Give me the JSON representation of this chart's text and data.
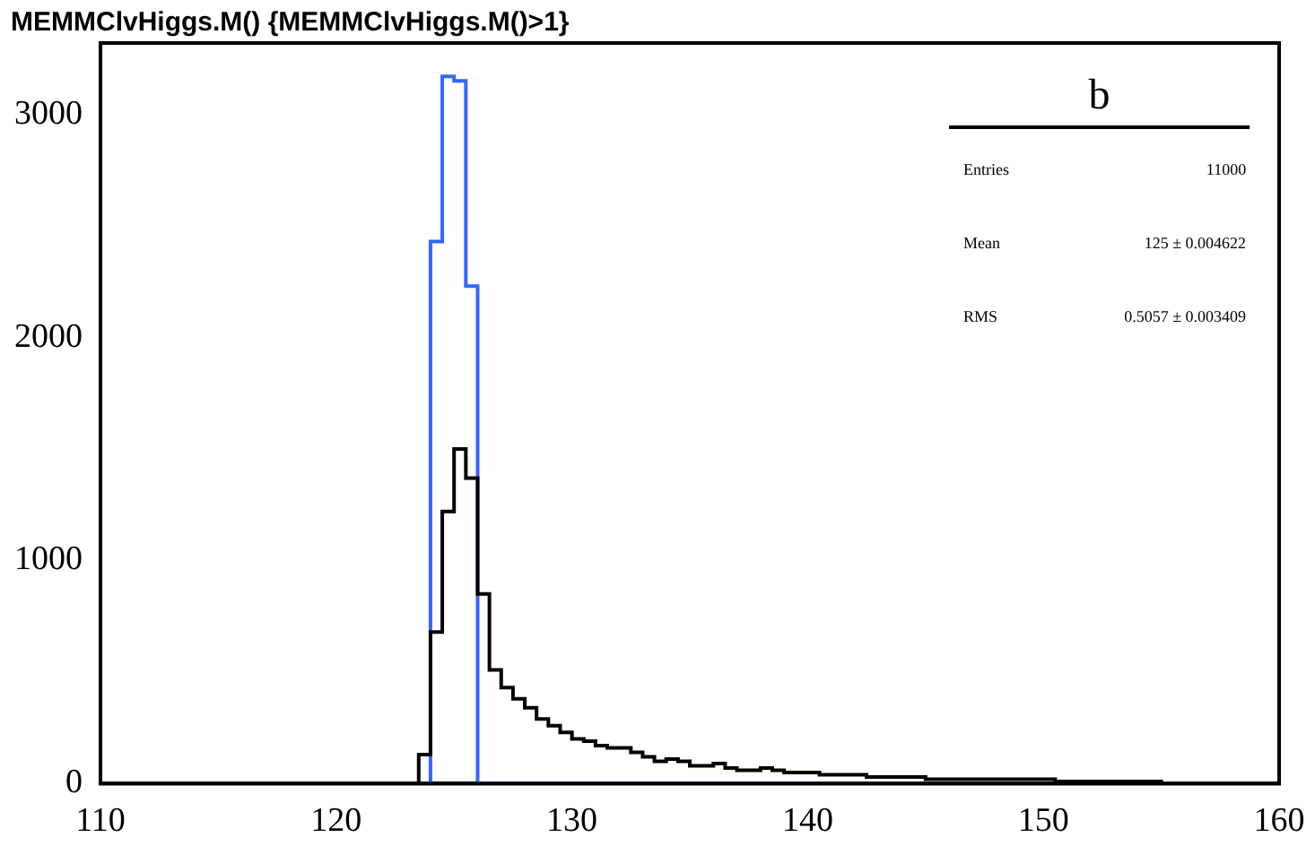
{
  "chart_data": {
    "type": "histogram",
    "title": "MEMMClvHiggs.M() {MEMMClvHiggs.M()>1}",
    "bins": [
      110,
      110.5,
      111,
      111.5,
      112,
      112.5,
      113,
      113.5,
      114,
      114.5,
      115,
      115.5,
      116,
      116.5,
      117,
      117.5,
      118,
      118.5,
      119,
      119.5,
      120,
      120.5,
      121,
      121.5,
      122,
      122.5,
      123,
      123.5,
      124,
      124.5,
      125,
      125.5,
      126,
      126.5,
      127,
      127.5,
      128,
      128.5,
      129,
      129.5,
      130,
      130.5,
      131,
      131.5,
      132,
      132.5,
      133,
      133.5,
      134,
      134.5,
      135,
      135.5,
      136,
      136.5,
      137,
      137.5,
      138,
      138.5,
      139,
      139.5,
      140,
      140.5,
      141,
      141.5,
      142,
      142.5,
      143,
      143.5,
      144,
      144.5,
      145,
      145.5,
      146,
      146.5,
      147,
      147.5,
      148,
      148.5,
      149,
      149.5,
      150,
      150.5,
      151,
      151.5,
      152,
      152.5,
      153,
      153.5,
      154,
      154.5,
      155,
      155.5,
      156,
      156.5,
      157,
      157.5,
      158,
      158.5,
      159,
      159.5,
      160
    ],
    "series": [
      {
        "color": "#000000",
        "values": [
          0,
          0,
          0,
          0,
          0,
          0,
          0,
          0,
          0,
          0,
          0,
          0,
          0,
          0,
          0,
          0,
          0,
          0,
          0,
          0,
          0,
          0,
          0,
          0,
          0,
          0,
          0,
          130,
          680,
          1220,
          1500,
          1370,
          850,
          510,
          430,
          380,
          340,
          290,
          260,
          230,
          200,
          190,
          170,
          160,
          160,
          140,
          120,
          100,
          110,
          100,
          80,
          80,
          90,
          70,
          60,
          60,
          70,
          60,
          50,
          50,
          50,
          40,
          40,
          40,
          40,
          30,
          30,
          30,
          30,
          30,
          20,
          20,
          20,
          20,
          20,
          20,
          20,
          20,
          20,
          20,
          20,
          10,
          10,
          10,
          10,
          10,
          10,
          10,
          10,
          10,
          0,
          0,
          0,
          0,
          0,
          0,
          0,
          0,
          0,
          0
        ]
      },
      {
        "color": "#3366ff",
        "values": [
          0,
          0,
          0,
          0,
          0,
          0,
          0,
          0,
          0,
          0,
          0,
          0,
          0,
          0,
          0,
          0,
          0,
          0,
          0,
          0,
          0,
          0,
          0,
          0,
          0,
          0,
          0,
          0,
          2430,
          3170,
          3150,
          2230,
          0,
          0,
          0,
          0,
          0,
          0,
          0,
          0,
          0,
          0,
          0,
          0,
          0,
          0,
          0,
          0,
          0,
          0,
          0,
          0,
          0,
          0,
          0,
          0,
          0,
          0,
          0,
          0,
          0,
          0,
          0,
          0,
          0,
          0,
          0,
          0,
          0,
          0,
          0,
          0,
          0,
          0,
          0,
          0,
          0,
          0,
          0,
          0,
          0,
          0,
          0,
          0,
          0,
          0,
          0,
          0,
          0,
          0,
          0,
          0,
          0,
          0,
          0,
          0,
          0,
          0,
          0,
          0
        ]
      }
    ],
    "xlim": [
      110,
      160
    ],
    "xticks": [
      110,
      120,
      130,
      140,
      150,
      160
    ],
    "ylim": [
      0,
      3320
    ],
    "yticks": [
      0,
      1000,
      2000,
      3000
    ],
    "grid": false,
    "legend": false,
    "annotations": [
      "b",
      "Entries",
      "11000",
      "Mean",
      "125 ± 0.004622",
      "RMS",
      "0.5057 ± 0.003409"
    ]
  }
}
